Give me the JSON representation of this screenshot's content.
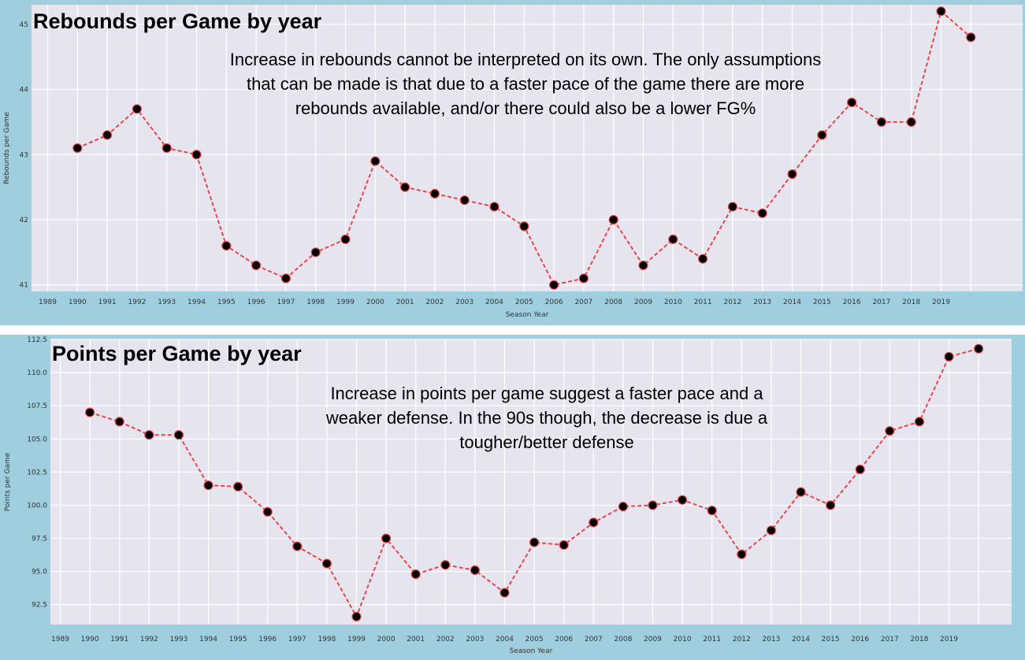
{
  "chart_data": [
    {
      "type": "line",
      "title": "Rebounds per Game by year",
      "annotation": "Increase in rebounds cannot be interpreted on its own. The only assumptions that can be made is that due to a faster pace of the game there are more rebounds available, and/or there could also be a lower FG%",
      "xlabel": "Season Year",
      "ylabel": "Rebounds per Game",
      "x_tick_labels": [
        "1989",
        "1990",
        "1991",
        "1992",
        "1993",
        "1994",
        "1995",
        "1996",
        "1997",
        "1998",
        "1999",
        "2000",
        "2001",
        "2002",
        "2003",
        "2004",
        "2005",
        "2006",
        "2007",
        "2008",
        "2009",
        "2010",
        "2011",
        "2012",
        "2013",
        "2014",
        "2015",
        "2016",
        "2017",
        "2018",
        "2019"
      ],
      "y_ticks": [
        41,
        42,
        43,
        44,
        45
      ],
      "ylim": [
        40.9,
        45.3
      ],
      "x": [
        1990,
        1991,
        1992,
        1993,
        1994,
        1995,
        1996,
        1997,
        1998,
        1999,
        2000,
        2001,
        2002,
        2003,
        2004,
        2005,
        2006,
        2007,
        2008,
        2009,
        2010,
        2011,
        2012,
        2013,
        2014,
        2015,
        2016,
        2017,
        2018,
        2019,
        2020
      ],
      "values": [
        43.1,
        43.3,
        43.7,
        43.1,
        43.0,
        41.6,
        41.3,
        41.1,
        41.5,
        41.7,
        42.9,
        42.5,
        42.4,
        42.3,
        42.2,
        41.9,
        41.0,
        41.1,
        42.0,
        41.3,
        41.7,
        41.4,
        42.2,
        42.1,
        42.7,
        43.3,
        43.8,
        43.5,
        43.5,
        45.2,
        44.8
      ],
      "grid": true,
      "line_color": "#e8474a",
      "marker_color": "#000000"
    },
    {
      "type": "line",
      "title": "Points per Game by year",
      "annotation": "Increase in points per game suggest a faster pace and a weaker defense. In the 90s though, the decrease is due a tougher/better defense",
      "xlabel": "Season Year",
      "ylabel": "Points per Game",
      "x_tick_labels": [
        "1989",
        "1990",
        "1991",
        "1992",
        "1993",
        "1994",
        "1995",
        "1996",
        "1997",
        "1998",
        "1999",
        "2000",
        "2001",
        "2002",
        "2003",
        "2004",
        "2005",
        "2006",
        "2007",
        "2008",
        "2009",
        "2010",
        "2011",
        "2012",
        "2013",
        "2014",
        "2015",
        "2016",
        "2017",
        "2018",
        "2019"
      ],
      "y_ticks": [
        "92.5",
        "95.0",
        "97.5",
        "100.0",
        "102.5",
        "105.0",
        "107.5",
        "110.0",
        "112.5"
      ],
      "ylim": [
        91.0,
        112.5
      ],
      "x": [
        1990,
        1991,
        1992,
        1993,
        1994,
        1995,
        1996,
        1997,
        1998,
        1999,
        2000,
        2001,
        2002,
        2003,
        2004,
        2005,
        2006,
        2007,
        2008,
        2009,
        2010,
        2011,
        2012,
        2013,
        2014,
        2015,
        2016,
        2017,
        2018,
        2019,
        2020
      ],
      "values": [
        107.0,
        106.3,
        105.3,
        105.3,
        101.5,
        101.4,
        99.5,
        96.9,
        95.6,
        91.6,
        97.5,
        94.8,
        95.5,
        95.1,
        93.4,
        97.2,
        97.0,
        98.7,
        99.9,
        100.0,
        100.4,
        99.6,
        96.3,
        98.1,
        101.0,
        100.0,
        102.7,
        105.6,
        106.3,
        111.2,
        111.8
      ],
      "grid": true,
      "line_color": "#e8474a",
      "marker_color": "#000000"
    }
  ]
}
